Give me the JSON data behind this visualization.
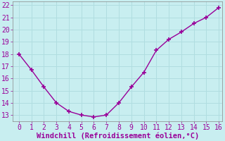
{
  "x": [
    0,
    1,
    2,
    3,
    4,
    5,
    6,
    7,
    8,
    9,
    10,
    11,
    12,
    13,
    14,
    15,
    16
  ],
  "y": [
    18.0,
    16.7,
    15.3,
    14.0,
    13.3,
    13.0,
    12.85,
    13.0,
    14.0,
    15.3,
    16.5,
    18.3,
    19.2,
    19.8,
    20.5,
    21.0,
    21.8
  ],
  "line_color": "#990099",
  "marker": "+",
  "marker_size": 4,
  "marker_linewidth": 1.2,
  "xlabel": "Windchill (Refroidissement éolien,°C)",
  "xlabel_color": "#990099",
  "xlabel_fontsize": 7.5,
  "ylim_min": 12.5,
  "ylim_max": 22.3,
  "xlim_min": -0.5,
  "xlim_max": 16.3,
  "yticks": [
    13,
    14,
    15,
    16,
    17,
    18,
    19,
    20,
    21,
    22
  ],
  "xticks": [
    0,
    1,
    2,
    3,
    4,
    5,
    6,
    7,
    8,
    9,
    10,
    11,
    12,
    13,
    14,
    15,
    16
  ],
  "grid_color": "#b0dde0",
  "bg_color": "#c8eef0",
  "tick_color": "#990099",
  "tick_fontsize": 7,
  "line_width": 1.0,
  "spine_color": "#888888"
}
